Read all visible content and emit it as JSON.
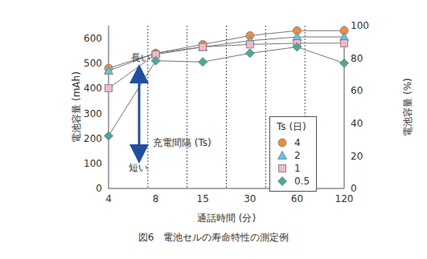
{
  "chart_data": {
    "type": "line",
    "title": "図6　電池セルの寿命特性の測定例",
    "x_label": "通話時間 (分)",
    "y_label": "電池容量 (mAh)",
    "y2_label": "電池容量 (%)",
    "categories": [
      "4",
      "8",
      "15",
      "30",
      "60",
      "120"
    ],
    "ylim": [
      0,
      650
    ],
    "yticks": [
      0,
      100,
      200,
      300,
      400,
      500,
      600
    ],
    "y2lim": [
      0,
      100
    ],
    "y2ticks": [
      0,
      20,
      40,
      60,
      80,
      100
    ],
    "grid": true,
    "legend": "right",
    "legend_title": "Ts (日)",
    "annotations": [
      "長い",
      "充電間隔 (Ts)",
      "短い"
    ],
    "series": [
      {
        "name": "4",
        "color": "#f08c3c",
        "marker": "circle",
        "values": [
          480,
          540,
          575,
          610,
          630,
          630
        ]
      },
      {
        "name": "2",
        "color": "#5cc6e6",
        "marker": "triangle",
        "values": [
          470,
          540,
          565,
          590,
          605,
          605
        ]
      },
      {
        "name": "1",
        "color": "#f4b6c8",
        "marker": "square",
        "values": [
          400,
          535,
          565,
          575,
          580,
          580
        ]
      },
      {
        "name": "0.5",
        "color": "#4aa89a",
        "marker": "diamond",
        "values": [
          210,
          510,
          505,
          540,
          565,
          500
        ]
      }
    ]
  }
}
